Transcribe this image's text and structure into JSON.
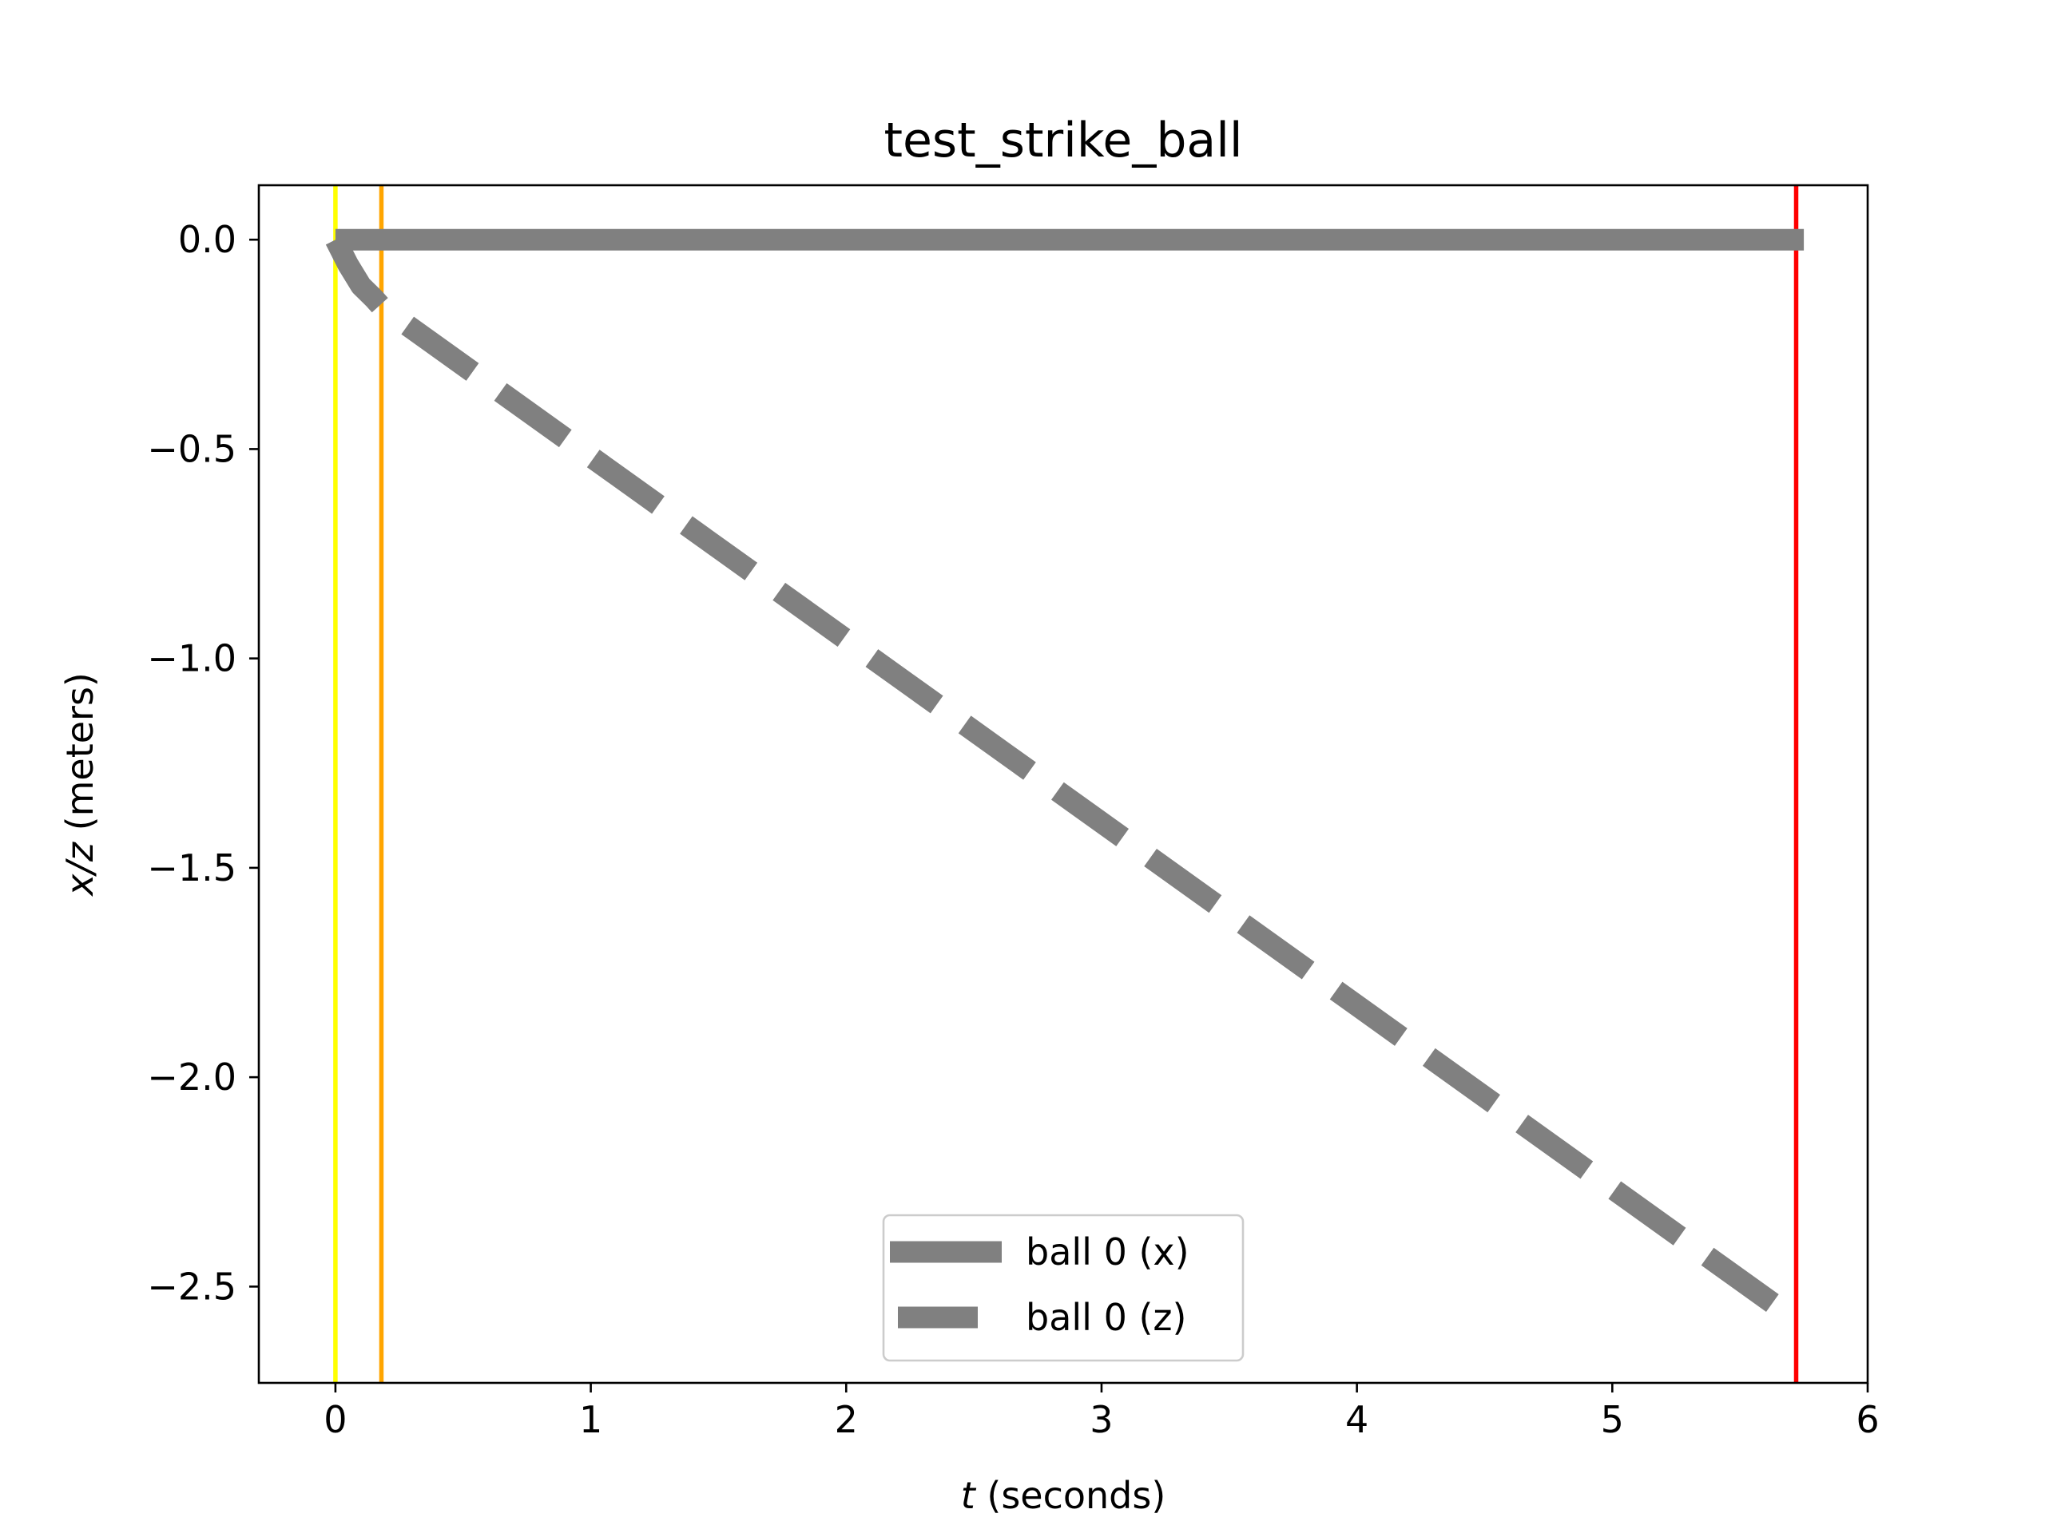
{
  "chart_data": {
    "type": "line",
    "title": "test_strike_ball",
    "xlabel": {
      "var": "t",
      "rest": " (seconds)"
    },
    "ylabel": {
      "var": "x/z",
      "rest": " (meters)"
    },
    "xlim": [
      -0.3,
      6.0
    ],
    "ylim": [
      -2.73,
      0.13
    ],
    "xticks": [
      0,
      1,
      2,
      3,
      4,
      5,
      6
    ],
    "yticks": [
      0.0,
      -0.5,
      -1.0,
      -1.5,
      -2.0,
      -2.5
    ],
    "ytick_labels": [
      "0.0",
      "−0.5",
      "−1.0",
      "−1.5",
      "−2.0",
      "−2.5"
    ],
    "grid": false,
    "legend_position": "lower-center",
    "vlines": [
      {
        "x": 0.0,
        "color": "#ffff00"
      },
      {
        "x": 0.18,
        "color": "#ffa500"
      },
      {
        "x": 5.72,
        "color": "#ff0000"
      }
    ],
    "series": [
      {
        "name": "ball 0 (x)",
        "style": "solid",
        "color": "#808080",
        "x": [
          0.0,
          5.75
        ],
        "y": [
          0.0,
          0.0
        ]
      },
      {
        "name": "ball 0 (z)",
        "style": "dashed",
        "color": "#808080",
        "x": [
          0.0,
          0.05,
          0.1,
          0.15,
          0.18,
          5.72
        ],
        "y": [
          0.0,
          -0.06,
          -0.11,
          -0.14,
          -0.16,
          -2.58
        ]
      }
    ]
  }
}
